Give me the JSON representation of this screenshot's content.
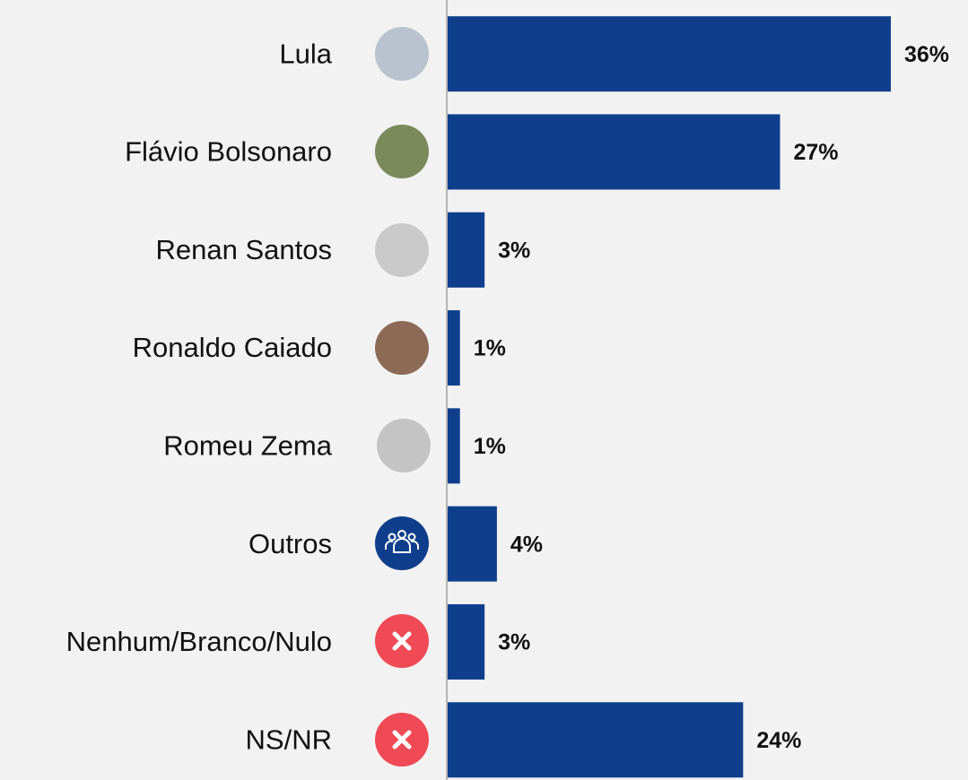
{
  "chart_data": {
    "type": "barh",
    "categories": [
      "Lula",
      "Flávio Bolsonaro",
      "Renan Santos",
      "Ronaldo Caiado",
      "Romeu Zema",
      "Outros",
      "Nenhum/Branco/Nulo",
      "NS/NR"
    ],
    "values": [
      36,
      27,
      3,
      1,
      1,
      4,
      3,
      24
    ],
    "value_labels": [
      "36%",
      "27%",
      "3%",
      "1%",
      "1%",
      "4%",
      "3%",
      "24%"
    ],
    "color": "#0f3f8c"
  }
}
